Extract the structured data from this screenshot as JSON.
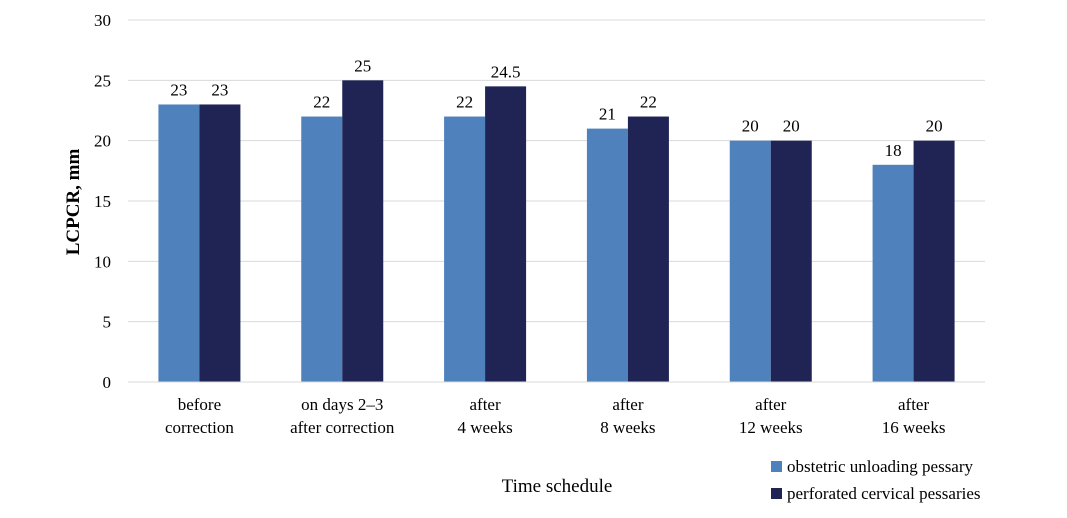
{
  "chart_data": {
    "type": "bar",
    "title": "",
    "xlabel": "Time schedule",
    "ylabel": "LCPCR, mm",
    "ylim": [
      0,
      30
    ],
    "yticks": [
      0,
      5,
      10,
      15,
      20,
      25,
      30
    ],
    "grid": true,
    "legend_position": "bottom-right",
    "categories": [
      [
        "before",
        "correction"
      ],
      [
        "on days 2–3",
        "after correction"
      ],
      [
        "after",
        "4 weeks"
      ],
      [
        "after",
        "8 weeks"
      ],
      [
        "after",
        "12 weeks"
      ],
      [
        "after",
        "16 weeks"
      ]
    ],
    "series": [
      {
        "name": "obstetric unloading pessary",
        "color": "#4f81bd",
        "values": [
          23,
          22,
          22,
          21,
          20,
          18
        ],
        "labels": [
          "23",
          "22",
          "22",
          "21",
          "20",
          "18"
        ]
      },
      {
        "name": "perforated cervical pessaries",
        "color": "#1f2455",
        "values": [
          23,
          25,
          24.5,
          22,
          20,
          20
        ],
        "labels": [
          "23",
          "25",
          "24.5",
          "22",
          "20",
          "20"
        ]
      }
    ]
  }
}
